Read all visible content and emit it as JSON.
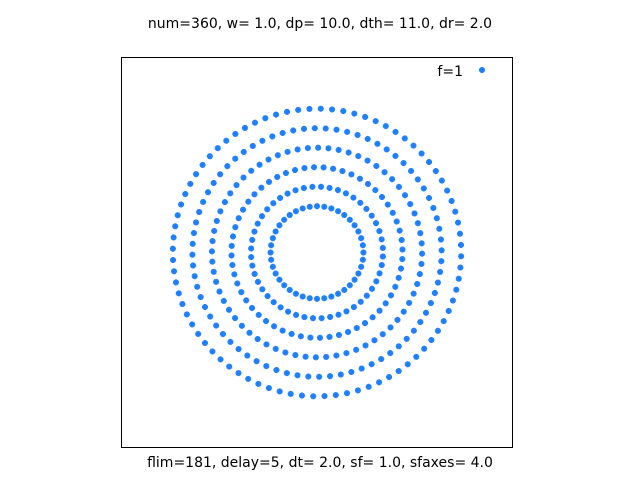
{
  "chart_data": {
    "type": "scatter",
    "title": "num=360, w=  1.0, dp= 10.0, dth= 11.0, dr=  2.0",
    "xlabel": "flim=181, delay=5, dt=  2.0, sf=  1.0, sfaxes=  4.0",
    "ylabel": "",
    "xlim": [
      -4,
      4
    ],
    "ylim": [
      -4,
      4
    ],
    "grid": false,
    "legend_position": "top-right",
    "marker": "star",
    "series": [
      {
        "name": "f=1",
        "color": "#1f7fff",
        "rings": [
          {
            "radius": 0.95,
            "count": 40,
            "start_angle_deg": 0
          },
          {
            "radius": 1.35,
            "count": 48,
            "start_angle_deg": 4
          },
          {
            "radius": 1.75,
            "count": 56,
            "start_angle_deg": 2
          },
          {
            "radius": 2.15,
            "count": 64,
            "start_angle_deg": 5
          },
          {
            "radius": 2.55,
            "count": 72,
            "start_angle_deg": 1
          },
          {
            "radius": 2.95,
            "count": 80,
            "start_angle_deg": 3
          }
        ]
      }
    ]
  }
}
